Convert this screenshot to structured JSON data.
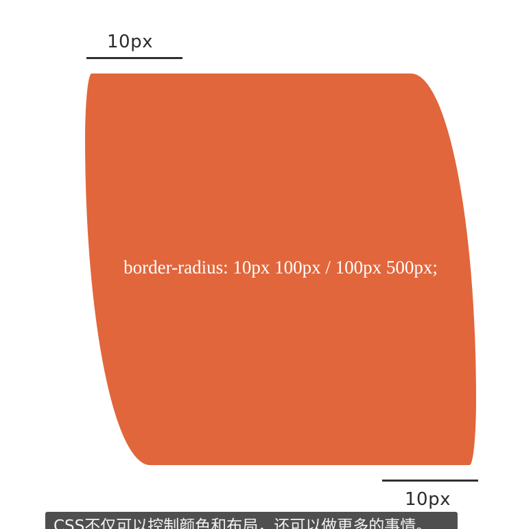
{
  "diagram": {
    "top_dimension_label": "10px",
    "bottom_dimension_label": "10px",
    "shape_label": "border-radius: 10px 100px / 100px 500px;",
    "shape_color": "#E1663C",
    "line_color": "#2F2F2F"
  },
  "caption": {
    "text": "CSS不仅可以控制颜色和布局，还可以做更多的事情。",
    "background_color": "#4F4F4F"
  }
}
